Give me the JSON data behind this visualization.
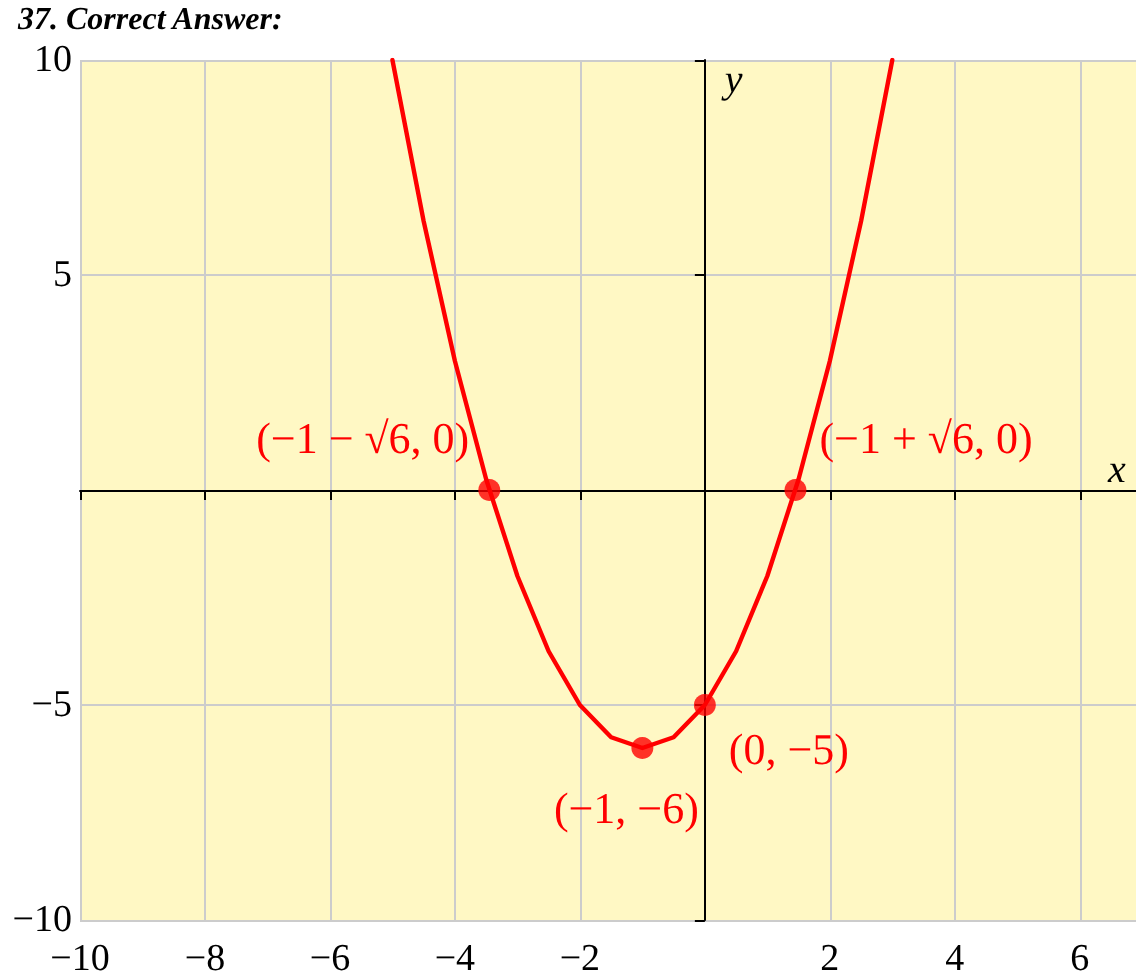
{
  "chart_data": {
    "type": "line",
    "title": "37. Correct Answer:",
    "xlabel": "x",
    "ylabel": "y",
    "xlim": [
      -10,
      6.9
    ],
    "ylim": [
      -10,
      10
    ],
    "xticks": [
      -10,
      -8,
      -6,
      -4,
      -2,
      2,
      4,
      6
    ],
    "yticks": [
      -10,
      -5,
      5,
      10
    ],
    "grid": true,
    "series": [
      {
        "color": "#ff0000",
        "marker": "none",
        "line_style": "solid",
        "x": [
          -5,
          -4.5,
          -4,
          -3.5,
          -3,
          -2.5,
          -2,
          -1.5,
          -1,
          -0.5,
          0,
          0.5,
          1,
          1.5,
          2,
          2.5,
          3
        ],
        "values": [
          10,
          6.25,
          3,
          0.25,
          -2,
          -3.75,
          -5,
          -5.75,
          -6,
          -5.75,
          -5,
          -3.75,
          -2,
          0.25,
          3,
          6.25,
          10
        ]
      },
      {
        "type": "scatter",
        "color": "#ff0000",
        "marker": "circle",
        "x": [
          -3.45,
          1.45,
          -1,
          0
        ],
        "values": [
          0,
          0,
          -6,
          -5
        ]
      }
    ],
    "annotations": [
      {
        "text": "(−1 − √6, 0)",
        "x": -3.45,
        "y": 0
      },
      {
        "text": "(−1 + √6, 0)",
        "x": 1.45,
        "y": 0
      },
      {
        "text": "(−1, −6)",
        "x": -1,
        "y": -6
      },
      {
        "text": "(0, −5)",
        "x": 0,
        "y": -5
      }
    ]
  }
}
